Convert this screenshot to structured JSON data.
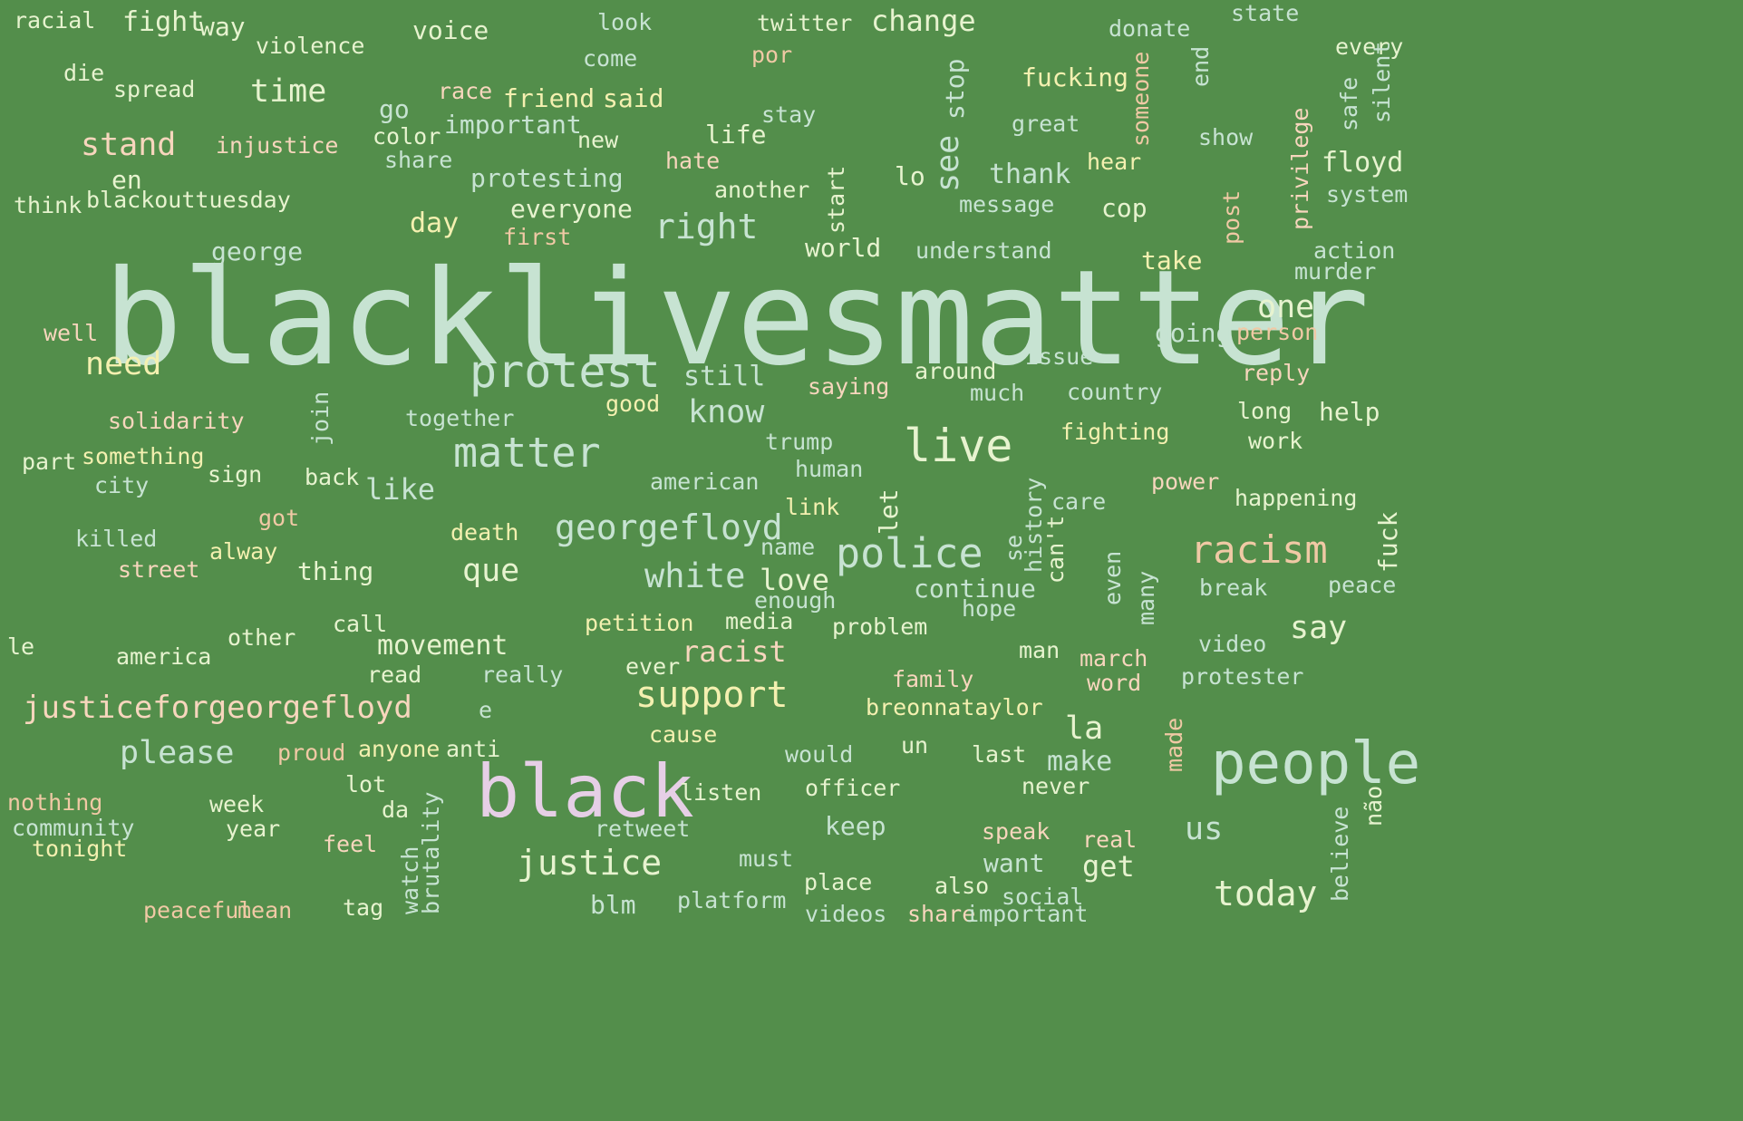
{
  "colors": {
    "background": "#538e4b",
    "mint": "#c7e3d2",
    "pale": "#e7f3cf",
    "peach": "#f7d6bd",
    "pink": "#e6cfe6",
    "yellow": "#f4f0b0",
    "tan": "#f0c9a5"
  },
  "words": [
    "blacklivesmatter",
    "black",
    "people",
    "protest",
    "matter",
    "live",
    "georgefloyd",
    "police",
    "racism",
    "white",
    "support",
    "justice",
    "justiceforgeorgefloyd",
    "right",
    "time",
    "stand",
    "please",
    "need",
    "today",
    "que",
    "change",
    "movement",
    "racist",
    "one",
    "know",
    "la",
    "us",
    "see",
    "stop",
    "say",
    "george",
    "still",
    "floyd",
    "day",
    "like",
    "thank",
    "make",
    "get",
    "fight",
    "way",
    "voice",
    "violence",
    "injustice",
    "blackouttuesday",
    "think",
    "racial",
    "look",
    "twitter",
    "donate",
    "state",
    "every",
    "come",
    "por",
    "die",
    "spread",
    "race",
    "friend",
    "said",
    "fucking",
    "end",
    "someone",
    "go",
    "important",
    "color",
    "new",
    "life",
    "stay",
    "great",
    "show",
    "share",
    "hate",
    "hear",
    "protesting",
    "silent",
    "safe",
    "privilege",
    "en",
    "another",
    "lo",
    "start",
    "message",
    "everyone",
    "cop",
    "system",
    "first",
    "world",
    "understand",
    "post",
    "action",
    "murder",
    "take",
    "going",
    "person",
    "well",
    "around",
    "issue",
    "reply",
    "much",
    "country",
    "saying",
    "good",
    "solidarity",
    "together",
    "join",
    "long",
    "help",
    "trump",
    "fighting",
    "work",
    "part",
    "something",
    "sign",
    "back",
    "human",
    "american",
    "power",
    "city",
    "history",
    "care",
    "happening",
    "link",
    "let",
    "got",
    "killed",
    "death",
    "se",
    "can't",
    "alway",
    "street",
    "thing",
    "name",
    "love",
    "fuck",
    "continue",
    "enough",
    "break",
    "peace",
    "even",
    "many",
    "hope",
    "le",
    "call",
    "other",
    "petition",
    "media",
    "problem",
    "america",
    "video",
    "man",
    "march",
    "read",
    "really",
    "ever",
    "family",
    "word",
    "protester",
    "breonnataylor",
    "e",
    "cause",
    "made",
    "proud",
    "anyone",
    "anti",
    "would",
    "un",
    "last",
    "nothing",
    "lot",
    "week",
    "listen",
    "officer",
    "never",
    "não",
    "community",
    "da",
    "year",
    "retweet",
    "keep",
    "speak",
    "real",
    "tonight",
    "feel",
    "must",
    "want",
    "believe",
    "watch",
    "brutality",
    "place",
    "also",
    "social",
    "peaceful",
    "mean",
    "tag",
    "blm",
    "platform",
    "videos",
    "share",
    "important"
  ]
}
